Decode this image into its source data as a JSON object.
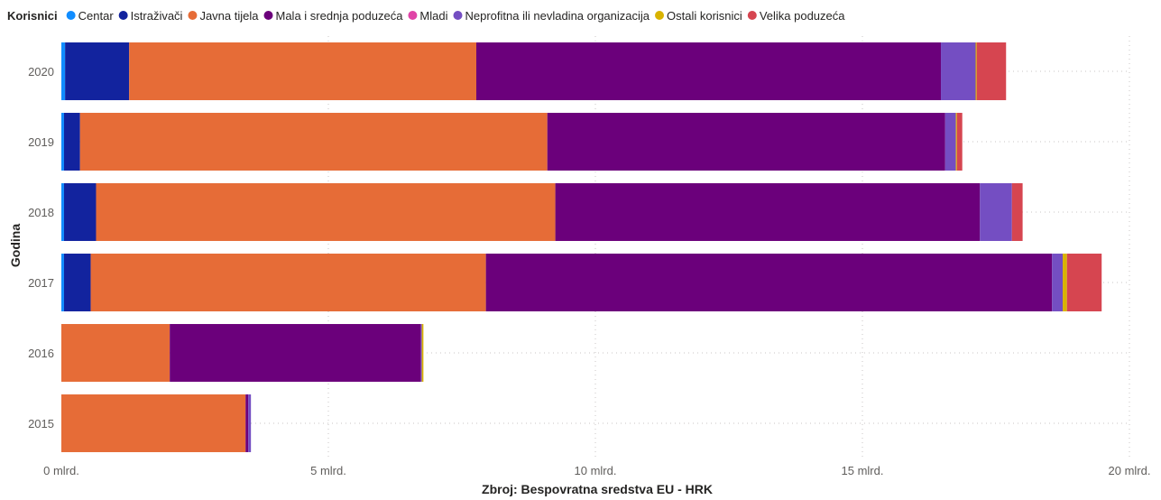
{
  "chart_data": {
    "type": "bar",
    "orientation": "horizontal",
    "stacked": true,
    "legend": {
      "title": "Korisnici",
      "position": "top-left"
    },
    "categories": [
      "2020",
      "2019",
      "2018",
      "2017",
      "2016",
      "2015"
    ],
    "series": [
      {
        "name": "Centar",
        "color": "#118DFF",
        "values": [
          0.07,
          0.05,
          0.05,
          0.05,
          0,
          0
        ]
      },
      {
        "name": "Istraživači",
        "color": "#12239E",
        "values": [
          1.2,
          0.3,
          0.6,
          0.5,
          0,
          0
        ]
      },
      {
        "name": "Javna tijela",
        "color": "#E66C37",
        "values": [
          6.5,
          8.75,
          8.6,
          7.4,
          2.03,
          3.45
        ]
      },
      {
        "name": "Mala i srednja poduzeća",
        "color": "#6B007B",
        "values": [
          8.7,
          7.45,
          7.95,
          10.6,
          4.7,
          0.05
        ]
      },
      {
        "name": "Mladi",
        "color": "#E044A7",
        "values": [
          0,
          0,
          0,
          0,
          0,
          0
        ]
      },
      {
        "name": "Neprofitna ili nevladina organizacija",
        "color": "#744EC2",
        "values": [
          0.65,
          0.2,
          0.6,
          0.2,
          0.02,
          0.05
        ]
      },
      {
        "name": "Ostali korisnici",
        "color": "#D9B300",
        "values": [
          0.02,
          0.02,
          0,
          0.08,
          0.03,
          0
        ]
      },
      {
        "name": "Velika poduzeća",
        "color": "#D64550",
        "values": [
          0.55,
          0.1,
          0.2,
          0.65,
          0,
          0
        ]
      }
    ],
    "xlim": [
      0,
      20
    ],
    "xticks": [
      0,
      5,
      10,
      15,
      20
    ],
    "xtick_labels": [
      "0 mlrd.",
      "5 mlrd.",
      "10 mlrd.",
      "15 mlrd.",
      "20 mlrd."
    ],
    "xlabel": "Zbroj: Bespovratna sredstva EU - HRK",
    "ylabel": "Godina",
    "grid": true
  }
}
